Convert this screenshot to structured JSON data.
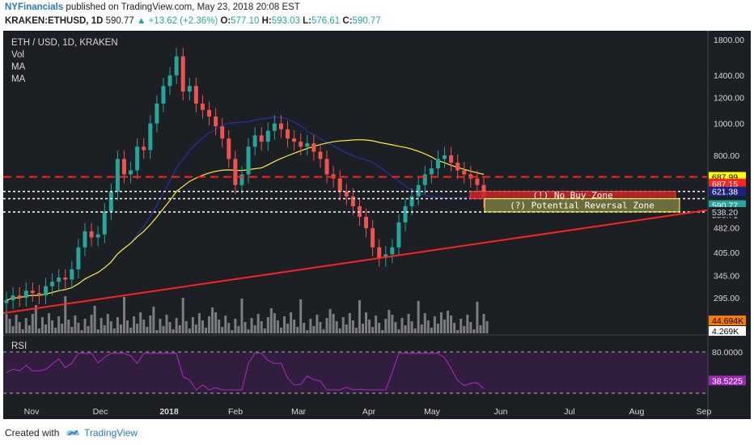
{
  "header": {
    "line1_publisher": "NYFinancials",
    "line1_rest": "published on TradingView.com, May 23, 2018 20:08 EST",
    "symbol": "KRAKEN:ETHUSD, 1D",
    "last": "590.77",
    "change": "▲ +13.62 (+2.36%)",
    "o_label": "O:",
    "o": "577.10",
    "h_label": "H:",
    "h": "593.03",
    "l_label": "L:",
    "l": "576.61",
    "c_label": "C:",
    "c": "590.77"
  },
  "legend": {
    "title": "ETH / USD, 1D, KRAKEN",
    "vol": "Vol",
    "ma1": "MA",
    "ma2": "MA"
  },
  "rsi": {
    "label": "RSI",
    "level_high": "80.0000",
    "value": "38.5225",
    "value_color": "#9c27b0"
  },
  "annotations": {
    "no_buy_zone": "(!) No Buy Zone",
    "reversal_zone": "(?) Potential Reversal Zone"
  },
  "chart_data": {
    "type": "candlestick",
    "symbol": "KRAKEN:ETHUSD",
    "timeframe": "1D",
    "price_axis_ticks": [
      "1800.00",
      "1400.00",
      "1200.00",
      "1000.00",
      "800.00",
      "482.00",
      "405.00",
      "345.00",
      "295.00"
    ],
    "price_tick_values": [
      1800,
      1400,
      1200,
      1000,
      800,
      482,
      405,
      345,
      295
    ],
    "price_range": [
      230,
      1850
    ],
    "price_badges": [
      {
        "text": "687.99",
        "value": 687.99,
        "bg": "#ffff00",
        "fg": "#000000"
      },
      {
        "text": "687.15",
        "value": 687.15,
        "bg": "#ff2222",
        "fg": "#ffffff"
      },
      {
        "text": "621.38",
        "value": 621.38,
        "bg": "#1a237e",
        "fg": "#ffffff"
      },
      {
        "text": "590.77",
        "value": 590.77,
        "bg": "#26a69a",
        "fg": "#ffffff"
      },
      {
        "text": "590.71",
        "value": 590.71,
        "bg": "#1c1f24",
        "fg": "#d5d7da"
      },
      {
        "text": "538.20",
        "value": 538.2,
        "bg": "#1c1f24",
        "fg": "#d5d7da"
      },
      {
        "text": "44.694K",
        "value": 44694,
        "bg": "#f57c00",
        "fg": "#000000"
      },
      {
        "text": "4.269K",
        "value": 4269,
        "bg": "#ffffff",
        "fg": "#000000"
      }
    ],
    "x_labels": [
      "Nov",
      "Dec",
      "2018",
      "Feb",
      "Mar",
      "Apr",
      "May",
      "Jun",
      "Jul",
      "Aug",
      "Sep"
    ],
    "horizontal_levels": [
      {
        "value": 687.99,
        "style": "dashed",
        "color": "#ff2222"
      },
      {
        "value": 621.38,
        "style": "dotted",
        "color": "#ffffff"
      },
      {
        "value": 590.71,
        "style": "dotted",
        "color": "#ffffff"
      },
      {
        "value": 538.2,
        "style": "dotted",
        "color": "#ffffff"
      }
    ],
    "trendline": {
      "color": "#ff2222",
      "from": {
        "date": "2017-10",
        "price": 265
      },
      "to": {
        "date": "2018-09",
        "price": 545
      }
    },
    "zones": [
      {
        "label": "(!) No Buy Zone",
        "top": 621.38,
        "bottom": 590.71,
        "color": "#c62828"
      },
      {
        "label": "(?) Potential Reversal Zone",
        "top": 590.71,
        "bottom": 538.2,
        "color": "#ffff66"
      }
    ],
    "price_path": [
      290,
      300,
      295,
      310,
      305,
      300,
      320,
      330,
      340,
      335,
      360,
      420,
      470,
      450,
      460,
      540,
      620,
      780,
      700,
      720,
      850,
      830,
      1000,
      1150,
      1300,
      1400,
      1600,
      1250,
      1300,
      1150,
      1100,
      1050,
      980,
      900,
      780,
      650,
      700,
      850,
      920,
      880,
      950,
      1000,
      960,
      900,
      880,
      850,
      870,
      820,
      780,
      700,
      680,
      620,
      600,
      560,
      520,
      480,
      420,
      390,
      400,
      420,
      500,
      560,
      600,
      650,
      700,
      730,
      780,
      800,
      760,
      720,
      700,
      680,
      650,
      590
    ],
    "ma_long_color": "#ffeb3b",
    "ma_short_color": "#2233aa",
    "rsi_levels": [
      80,
      20
    ]
  }
}
